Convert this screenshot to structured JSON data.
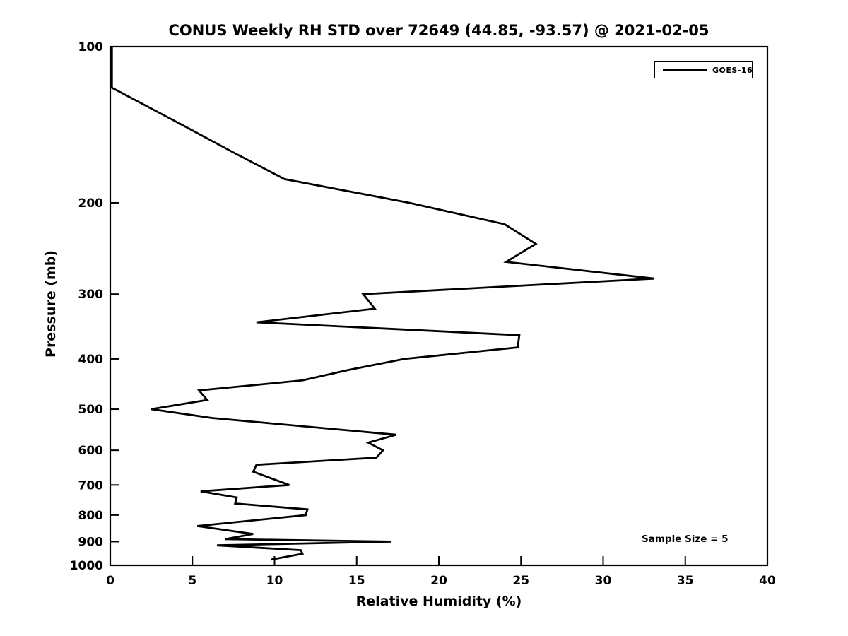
{
  "chart": {
    "title": "CONUS Weekly RH STD over 72649 (44.85, -93.57) @ 2021-02-05",
    "xlabel": "Relative Humidity (%)",
    "ylabel": "Pressure (mb)",
    "legend": {
      "label": "GOES-16"
    },
    "annotation": "Sample Size = 5"
  },
  "colors": {
    "line": "#000000",
    "axes": "#000000",
    "background": "#ffffff"
  },
  "chart_data": {
    "type": "line",
    "title": "CONUS Weekly RH STD over 72649 (44.85, -93.57) @ 2021-02-05",
    "xlabel": "Relative Humidity (%)",
    "ylabel": "Pressure (mb)",
    "x_axis": {
      "min": 0,
      "max": 40,
      "ticks": [
        0,
        5,
        10,
        15,
        20,
        25,
        30,
        35,
        40
      ],
      "grid": false
    },
    "y_axis": {
      "min": 100,
      "max": 1000,
      "scale": "log",
      "inverted": true,
      "ticks": [
        100,
        200,
        300,
        400,
        500,
        600,
        700,
        800,
        900,
        1000
      ],
      "grid": false
    },
    "legend": {
      "position": "upper right",
      "entries": [
        {
          "name": "GOES-16",
          "color": "#000000"
        }
      ]
    },
    "annotations": [
      {
        "text": "Sample Size = 5",
        "position": "lower right"
      }
    ],
    "point_format": [
      "rh_percent",
      "pressure_mb"
    ],
    "series": [
      {
        "name": "GOES-16",
        "color": "#000000",
        "points": [
          [
            0.1,
            100
          ],
          [
            0.1,
            120
          ],
          [
            4.1,
            140
          ],
          [
            7.5,
            160
          ],
          [
            10.6,
            180
          ],
          [
            18.2,
            200
          ],
          [
            24.0,
            220
          ],
          [
            25.9,
            240
          ],
          [
            24.1,
            260
          ],
          [
            33.1,
            280
          ],
          [
            15.4,
            300
          ],
          [
            16.1,
            320
          ],
          [
            8.9,
            340
          ],
          [
            24.9,
            360
          ],
          [
            24.8,
            380
          ],
          [
            17.9,
            400
          ],
          [
            14.5,
            420
          ],
          [
            11.7,
            440
          ],
          [
            5.4,
            460
          ],
          [
            5.9,
            480
          ],
          [
            2.5,
            500
          ],
          [
            6.2,
            520
          ],
          [
            17.4,
            560
          ],
          [
            15.7,
            580
          ],
          [
            16.6,
            600
          ],
          [
            16.2,
            620
          ],
          [
            8.9,
            640
          ],
          [
            8.7,
            660
          ],
          [
            10.9,
            700
          ],
          [
            5.5,
            720
          ],
          [
            7.7,
            740
          ],
          [
            7.6,
            760
          ],
          [
            12.0,
            780
          ],
          [
            11.9,
            800
          ],
          [
            5.3,
            840
          ],
          [
            8.7,
            870
          ],
          [
            7.0,
            890
          ],
          [
            17.1,
            900
          ],
          [
            6.5,
            915
          ],
          [
            11.6,
            935
          ],
          [
            11.7,
            950
          ],
          [
            9.8,
            975
          ]
        ]
      }
    ]
  }
}
